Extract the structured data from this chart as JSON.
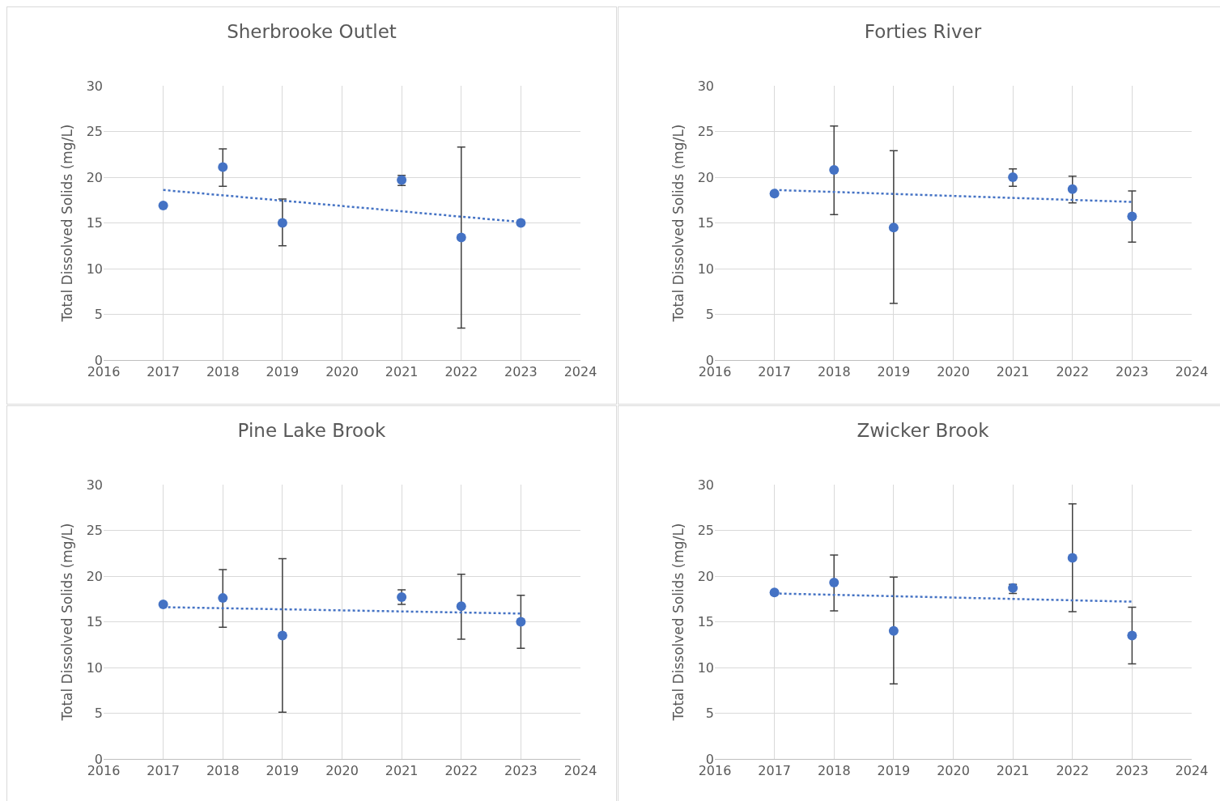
{
  "chart_data": [
    {
      "type": "scatter",
      "title": "Sherbrooke Outlet",
      "ylabel": "Total Dissolved Solids (mg/L)",
      "xlim": [
        2016,
        2024
      ],
      "xticks": [
        2016,
        2017,
        2018,
        2019,
        2020,
        2021,
        2022,
        2023,
        2024
      ],
      "ylim": [
        0,
        30
      ],
      "yticks": [
        0,
        5,
        10,
        15,
        20,
        25,
        30
      ],
      "grid": true,
      "series": [
        {
          "marker": "circle",
          "color": "#4472c4",
          "x": [
            2017,
            2018,
            2019,
            2021,
            2022,
            2023
          ],
          "values": [
            16.9,
            21.1,
            15.0,
            19.7,
            13.4,
            15.0
          ],
          "errors": [
            null,
            [
              19.0,
              23.1
            ],
            [
              12.5,
              17.6
            ],
            [
              19.1,
              20.2
            ],
            [
              3.5,
              23.3
            ],
            null
          ]
        },
        {
          "type": "line",
          "marker": "none",
          "line_style": "dotted",
          "color": "#4472c4",
          "x": [
            2017,
            2023
          ],
          "values": [
            18.6,
            15.1
          ]
        }
      ]
    },
    {
      "type": "scatter",
      "title": "Forties River",
      "ylabel": "Total Dissolved Solids (mg/L)",
      "xlim": [
        2016,
        2024
      ],
      "xticks": [
        2016,
        2017,
        2018,
        2019,
        2020,
        2021,
        2022,
        2023,
        2024
      ],
      "ylim": [
        0,
        30
      ],
      "yticks": [
        0,
        5,
        10,
        15,
        20,
        25,
        30
      ],
      "grid": true,
      "series": [
        {
          "marker": "circle",
          "color": "#4472c4",
          "x": [
            2017,
            2018,
            2019,
            2021,
            2022,
            2023
          ],
          "values": [
            18.2,
            20.8,
            14.5,
            20.0,
            18.7,
            15.7
          ],
          "errors": [
            null,
            [
              15.9,
              25.6
            ],
            [
              6.2,
              22.9
            ],
            [
              19.0,
              20.9
            ],
            [
              17.2,
              20.1
            ],
            [
              12.9,
              18.5
            ]
          ]
        },
        {
          "type": "line",
          "marker": "none",
          "line_style": "dotted",
          "color": "#4472c4",
          "x": [
            2017,
            2023
          ],
          "values": [
            18.6,
            17.3
          ]
        }
      ]
    },
    {
      "type": "scatter",
      "title": "Pine Lake Brook",
      "ylabel": "Total Dissolved Solids (mg/L)",
      "xlim": [
        2016,
        2024
      ],
      "xticks": [
        2016,
        2017,
        2018,
        2019,
        2020,
        2021,
        2022,
        2023,
        2024
      ],
      "ylim": [
        0,
        30
      ],
      "yticks": [
        0,
        5,
        10,
        15,
        20,
        25,
        30
      ],
      "grid": true,
      "series": [
        {
          "marker": "circle",
          "color": "#4472c4",
          "x": [
            2017,
            2018,
            2019,
            2021,
            2022,
            2023
          ],
          "values": [
            16.9,
            17.6,
            13.5,
            17.7,
            16.7,
            15.0
          ],
          "errors": [
            null,
            [
              14.4,
              20.7
            ],
            [
              5.1,
              21.9
            ],
            [
              16.9,
              18.5
            ],
            [
              13.1,
              20.2
            ],
            [
              12.1,
              17.9
            ]
          ]
        },
        {
          "type": "line",
          "marker": "none",
          "line_style": "dotted",
          "color": "#4472c4",
          "x": [
            2017,
            2023
          ],
          "values": [
            16.6,
            15.9
          ]
        }
      ]
    },
    {
      "type": "scatter",
      "title": "Zwicker Brook",
      "ylabel": "Total Dissolved Solids (mg/L)",
      "xlim": [
        2016,
        2024
      ],
      "xticks": [
        2016,
        2017,
        2018,
        2019,
        2020,
        2021,
        2022,
        2023,
        2024
      ],
      "ylim": [
        0,
        30
      ],
      "yticks": [
        0,
        5,
        10,
        15,
        20,
        25,
        30
      ],
      "grid": true,
      "series": [
        {
          "marker": "circle",
          "color": "#4472c4",
          "x": [
            2017,
            2018,
            2019,
            2021,
            2022,
            2023
          ],
          "values": [
            18.2,
            19.3,
            14.0,
            18.7,
            22.0,
            13.5
          ],
          "errors": [
            null,
            [
              16.2,
              22.3
            ],
            [
              8.2,
              19.9
            ],
            [
              18.1,
              19.1
            ],
            [
              16.1,
              27.9
            ],
            [
              10.4,
              16.6
            ]
          ]
        },
        {
          "type": "line",
          "marker": "none",
          "line_style": "dotted",
          "color": "#4472c4",
          "x": [
            2017,
            2023
          ],
          "values": [
            18.1,
            17.2
          ]
        }
      ]
    }
  ]
}
